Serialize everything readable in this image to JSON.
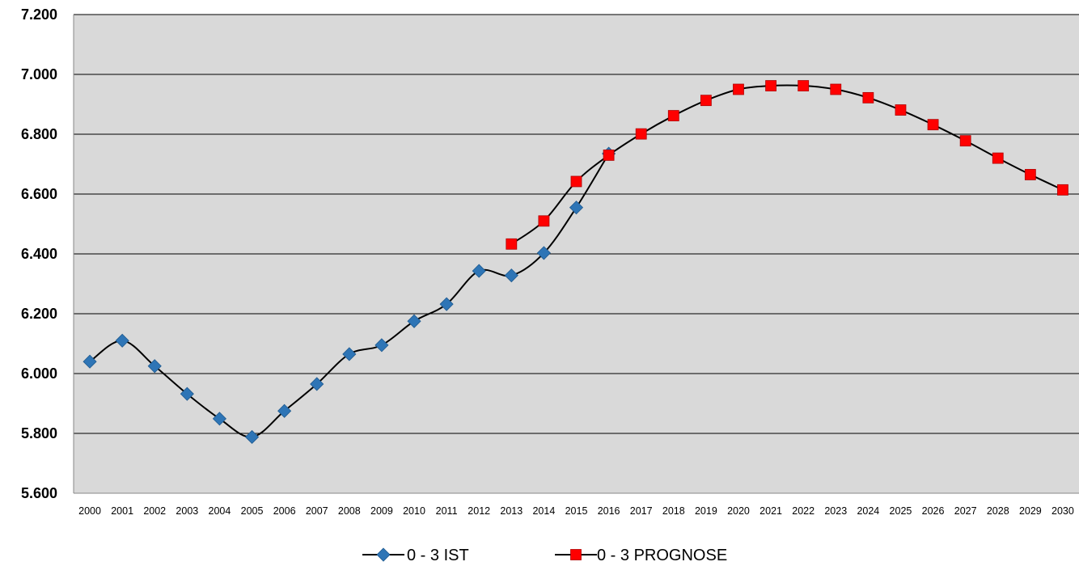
{
  "chart_data": {
    "type": "line",
    "title": "",
    "xlabel": "",
    "ylabel": "",
    "categories": [
      "2000",
      "2001",
      "2002",
      "2003",
      "2004",
      "2005",
      "2006",
      "2007",
      "2008",
      "2009",
      "2010",
      "2011",
      "2012",
      "2013",
      "2014",
      "2015",
      "2016",
      "2017",
      "2018",
      "2019",
      "2020",
      "2021",
      "2022",
      "2023",
      "2024",
      "2025",
      "2026",
      "2027",
      "2028",
      "2029",
      "2030"
    ],
    "ylim": [
      5600,
      7200
    ],
    "yticks": [
      5600,
      5800,
      6000,
      6200,
      6400,
      6600,
      6800,
      7000,
      7200
    ],
    "ytick_labels": [
      "5.600",
      "5.800",
      "6.000",
      "6.200",
      "6.400",
      "6.600",
      "6.800",
      "7.000",
      "7.200"
    ],
    "grid": true,
    "plot_background": "#d9d9d9",
    "legend_position": "bottom",
    "series": [
      {
        "name": "0 - 3 IST",
        "marker": "diamond",
        "color": "#2e75b6",
        "line_color": "#000000",
        "values": [
          6040,
          6110,
          6025,
          5932,
          5849,
          5788,
          5875,
          5965,
          6065,
          6095,
          6175,
          6232,
          6343,
          6328,
          6403,
          6555,
          6735,
          null,
          null,
          null,
          null,
          null,
          null,
          null,
          null,
          null,
          null,
          null,
          null,
          null,
          null
        ]
      },
      {
        "name": "0 - 3 PROGNOSE",
        "marker": "square",
        "color": "#ff0000",
        "line_color": "#000000",
        "values": [
          null,
          null,
          null,
          null,
          null,
          null,
          null,
          null,
          null,
          null,
          null,
          null,
          null,
          6433,
          6510,
          6642,
          6730,
          6801,
          6862,
          6913,
          6950,
          6962,
          6962,
          6950,
          6922,
          6881,
          6832,
          6778,
          6720,
          6665,
          6614
        ]
      }
    ]
  }
}
